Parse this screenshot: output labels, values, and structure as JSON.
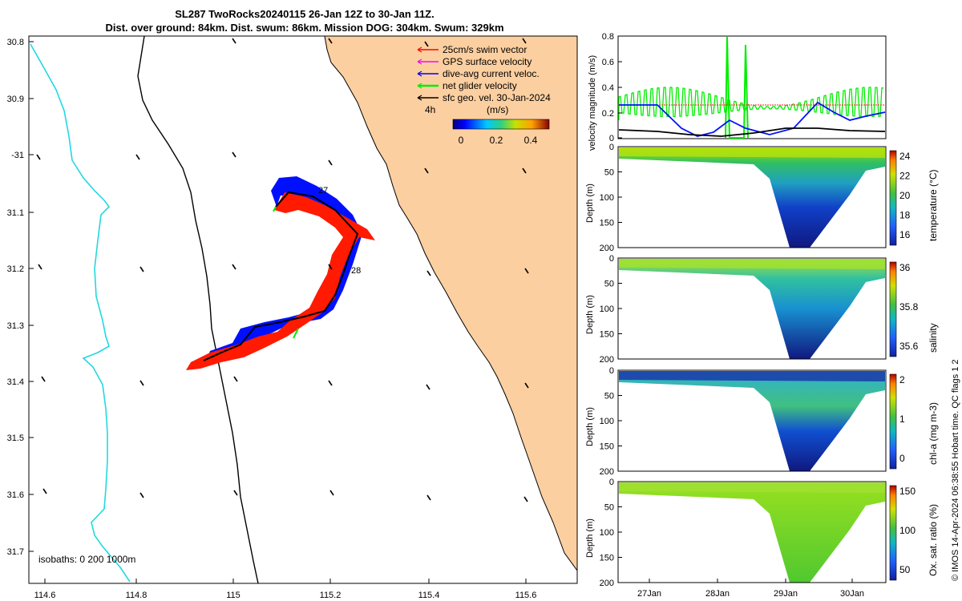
{
  "header": {
    "title_line1": "SL287 TwoRocks20240115 26-Jan 12Z to 30-Jan 11Z.",
    "title_line2": "Dist. over ground: 84km. Dist. swum: 86km. Mission DOG: 304km. Swum: 329km"
  },
  "map": {
    "lon_ticks": [
      "114.6",
      "114.8",
      "115",
      "115.2",
      "115.4",
      "115.6"
    ],
    "lat_ticks": [
      "30.8",
      "30.9",
      "-31",
      "31.1",
      "31.2",
      "31.3",
      "31.4",
      "31.5",
      "31.6",
      "31.7"
    ],
    "legend": [
      {
        "label": "25cm/s swim vector",
        "color": "#ff0000"
      },
      {
        "label": "GPS surface velocity",
        "color": "#ff00ff"
      },
      {
        "label": "dive-avg current veloc.",
        "color": "#0000ff"
      },
      {
        "label": "net glider velocity",
        "color": "#00ee00"
      },
      {
        "label": "sfc geo. vel. 30-Jan-2024",
        "color": "#000000"
      }
    ],
    "time_step_label": "4h",
    "colorbar_unit": "(m/s)",
    "colorbar_ticks": [
      "0",
      "0.2",
      "0.4"
    ],
    "isobaths_label": "isobaths: 0   200  1000m",
    "day_labels": [
      "27",
      "28"
    ],
    "colors": {
      "land": "#fccfa0",
      "isobath_1000": "#22d8e0",
      "track_red": "#ff1a00",
      "track_blue": "#0010ff"
    }
  },
  "velocity_panel": {
    "ylabel": "velocity magnitude (m/s)",
    "yticks": [
      "0",
      "0.2",
      "0.4",
      "0.6",
      "0.8"
    ]
  },
  "sections": [
    {
      "name": "temperature",
      "cb_label": "temperature (°C)",
      "cb_ticks": [
        "16",
        "18",
        "20",
        "22",
        "24"
      ],
      "depth_label": "Depth (m)",
      "depth_ticks": [
        "0",
        "50",
        "100",
        "150",
        "200"
      ]
    },
    {
      "name": "salinity",
      "cb_label": "salinity",
      "cb_ticks": [
        "35.6",
        "35.8",
        "36"
      ],
      "depth_label": "Depth (m)",
      "depth_ticks": [
        "0",
        "50",
        "100",
        "150",
        "200"
      ]
    },
    {
      "name": "chl-a",
      "cb_label": "chl-a (mg m-3)",
      "cb_ticks": [
        "0",
        "1",
        "2"
      ],
      "depth_label": "Depth (m)",
      "depth_ticks": [
        "0",
        "50",
        "100",
        "150",
        "200"
      ]
    },
    {
      "name": "oxygen",
      "cb_label": "Ox. sat. ratio (%)",
      "cb_ticks": [
        "50",
        "100",
        "150"
      ],
      "depth_label": "Depth (m)",
      "depth_ticks": [
        "0",
        "50",
        "100",
        "150",
        "200"
      ]
    }
  ],
  "time_axis": {
    "ticks": [
      "27Jan",
      "28Jan",
      "29Jan",
      "30Jan"
    ]
  },
  "credit": {
    "text": "© IMOS 14-Apr-2024 06:38:55 Hobart time. QC flags 1  2"
  }
}
